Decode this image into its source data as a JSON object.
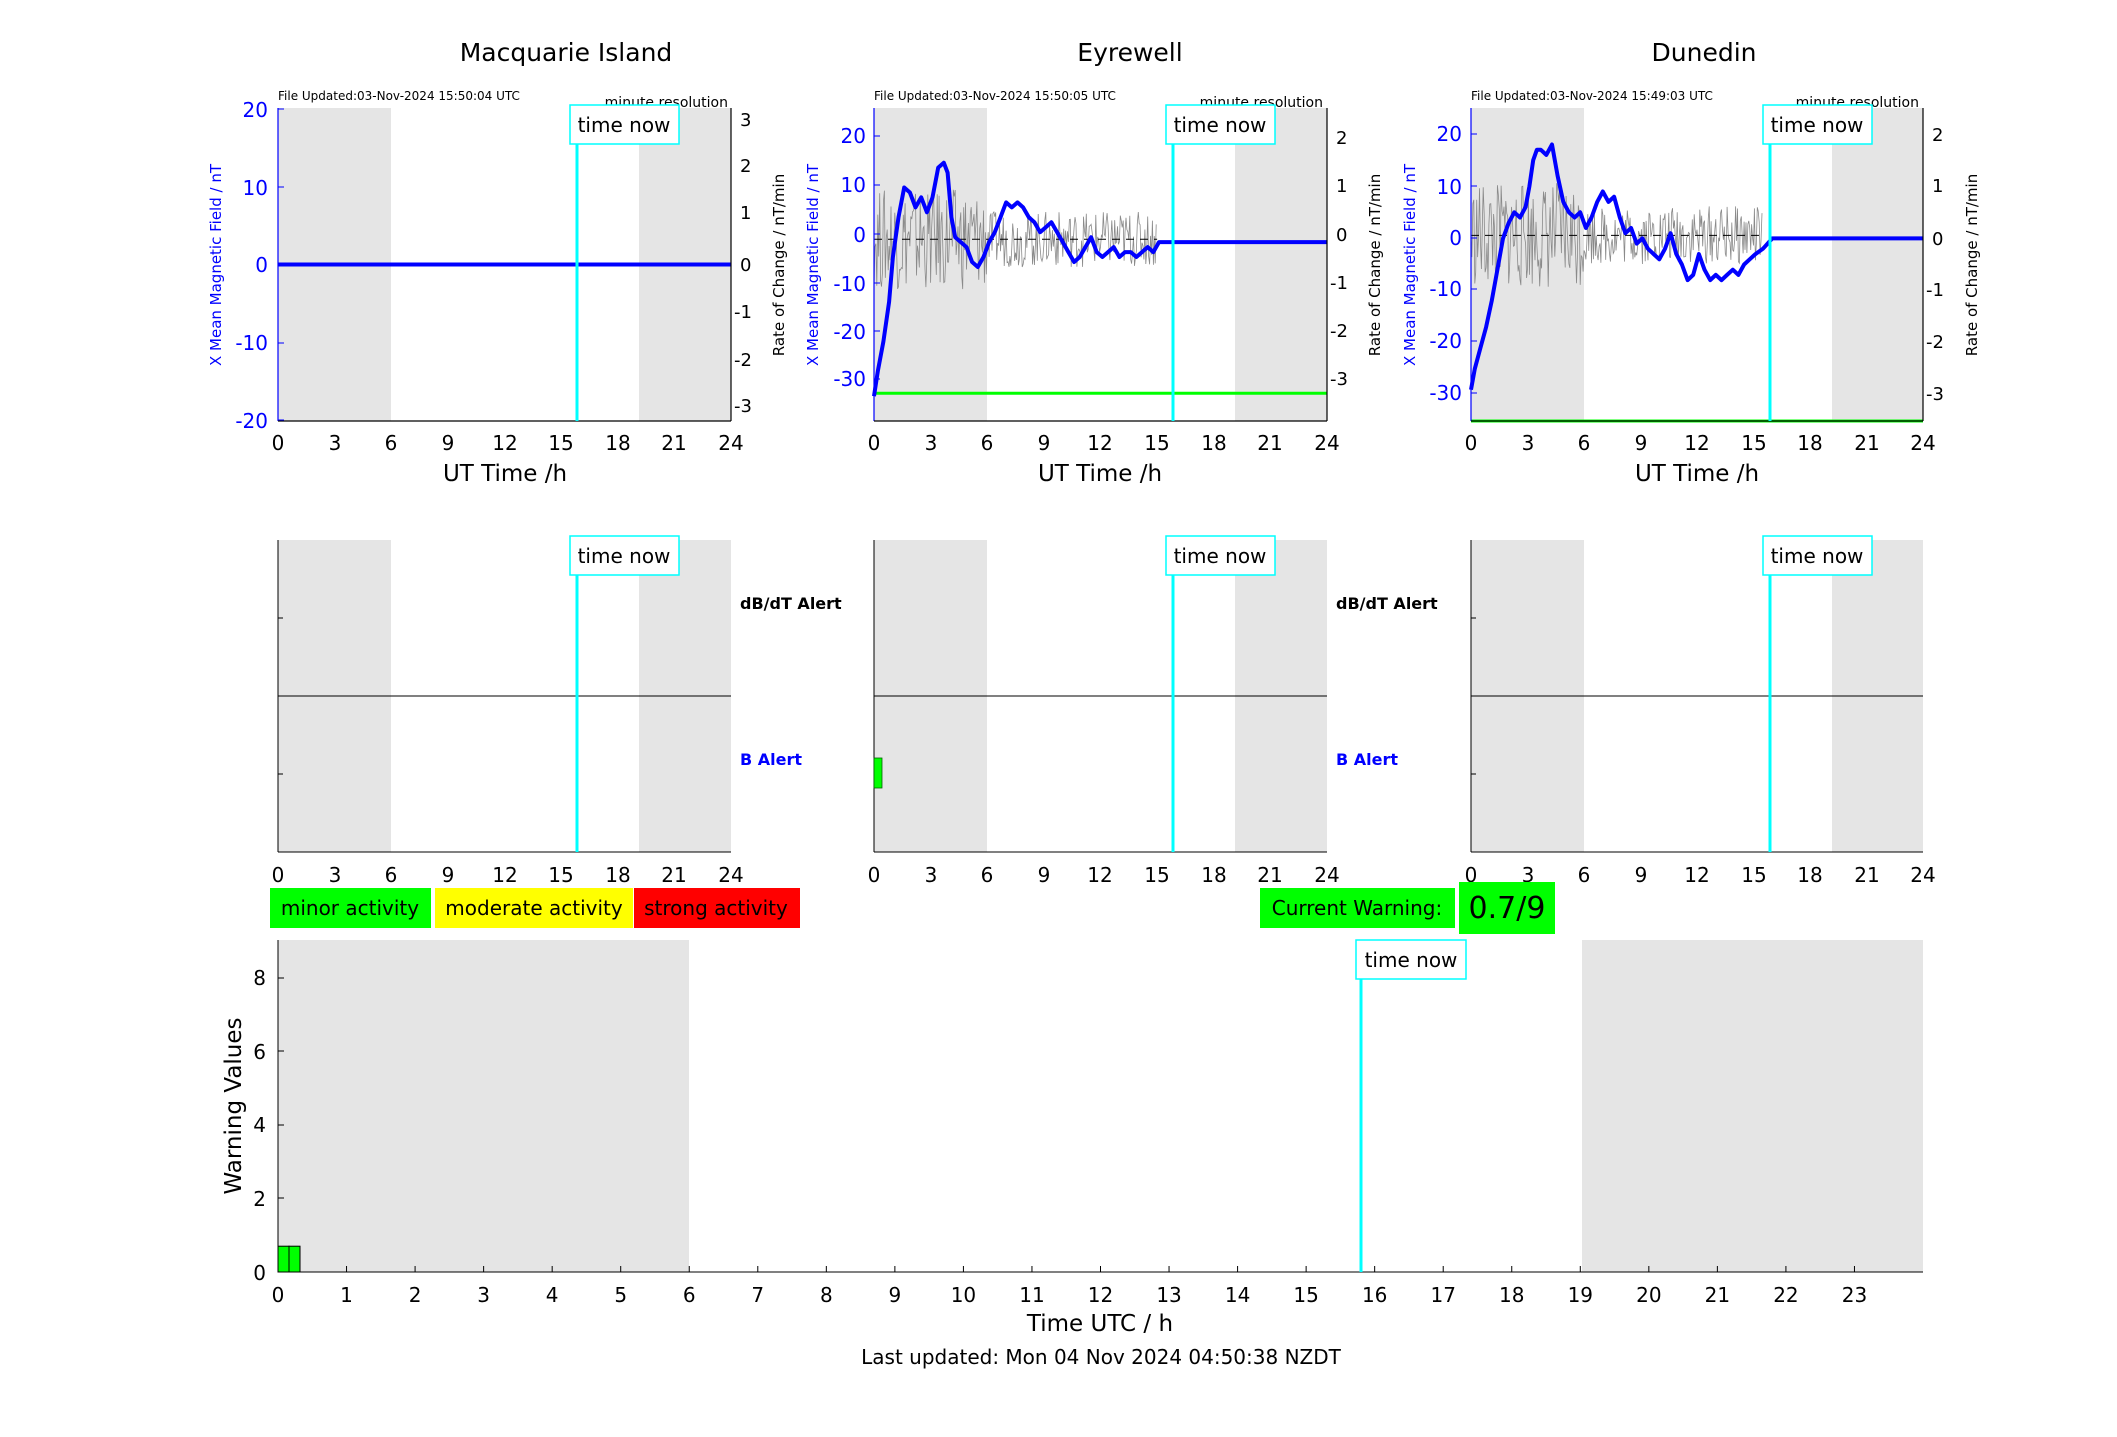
{
  "panels": [
    {
      "title": "Macquarie Island",
      "file_updated": "File Updated:03-Nov-2024 15:50:04 UTC",
      "resolution": "minute resolution",
      "ylabel_left": "X Mean Magnetic Field / nT",
      "ylabel_right": "Rate of Change / nT/min",
      "xlabel": "UT Time /h",
      "time_now_label": "time now",
      "left_ticks": [
        "20",
        "10",
        "0",
        "-10",
        "-20"
      ],
      "right_ticks": [
        "3",
        "2",
        "1",
        "0",
        "-1",
        "-2",
        "-3"
      ],
      "x_ticks": [
        "0",
        "3",
        "6",
        "9",
        "12",
        "15",
        "18",
        "21",
        "24"
      ]
    },
    {
      "title": "Eyrewell",
      "file_updated": "File Updated:03-Nov-2024 15:50:05 UTC",
      "resolution": "minute resolution",
      "ylabel_left": "X Mean Magnetic Field / nT",
      "ylabel_right": "Rate of Change / nT/min",
      "xlabel": "UT Time /h",
      "time_now_label": "time now",
      "left_ticks": [
        "20",
        "10",
        "0",
        "-10",
        "-20",
        "-30"
      ],
      "right_ticks": [
        "2",
        "1",
        "0",
        "-1",
        "-2",
        "-3"
      ],
      "x_ticks": [
        "0",
        "3",
        "6",
        "9",
        "12",
        "15",
        "18",
        "21",
        "24"
      ]
    },
    {
      "title": "Dunedin",
      "file_updated": "File Updated:03-Nov-2024 15:49:03 UTC",
      "resolution": "minute resolution",
      "ylabel_left": "X Mean Magnetic Field / nT",
      "ylabel_right": "Rate of Change / nT/min",
      "xlabel": "UT Time /h",
      "time_now_label": "time now",
      "left_ticks": [
        "20",
        "10",
        "0",
        "-10",
        "-20",
        "-30"
      ],
      "right_ticks": [
        "2",
        "1",
        "0",
        "-1",
        "-2",
        "-3"
      ],
      "x_ticks": [
        "0",
        "3",
        "6",
        "9",
        "12",
        "15",
        "18",
        "21",
        "24"
      ]
    }
  ],
  "alerts": {
    "dbdt_label": "dB/dT Alert",
    "b_label": "B Alert",
    "x_ticks": [
      "0",
      "3",
      "6",
      "9",
      "12",
      "15",
      "18",
      "21",
      "24"
    ]
  },
  "legend": {
    "minor": "minor activity",
    "moderate": "moderate activity",
    "strong": "strong activity",
    "minor_color": "#00ff00",
    "moderate_color": "#ffff00",
    "strong_color": "#ff0000"
  },
  "current_warning": {
    "label": "Current Warning:",
    "value": "0.7/9"
  },
  "warning_chart": {
    "ylabel": "Warning Values",
    "xlabel": "Time UTC / h",
    "y_ticks": [
      "8",
      "6",
      "4",
      "2",
      "0"
    ],
    "x_ticks": [
      "0",
      "1",
      "2",
      "3",
      "4",
      "5",
      "6",
      "7",
      "8",
      "9",
      "10",
      "11",
      "12",
      "13",
      "14",
      "15",
      "16",
      "17",
      "18",
      "19",
      "20",
      "21",
      "22",
      "23"
    ],
    "time_now_label": "time now"
  },
  "footer": "Last updated: Mon 04 Nov 2024 04:50:38 NZDT",
  "chart_data": [
    {
      "type": "line",
      "title": "Macquarie Island",
      "xlabel": "UT Time /h",
      "ylabel": "X Mean Magnetic Field / nT",
      "ylabel_right": "Rate of Change / nT/min",
      "xlim": [
        0,
        24
      ],
      "ylim": [
        -20,
        20
      ],
      "ylim_right": [
        -3.4,
        3.4
      ],
      "time_now": 15.8,
      "night_shading": [
        [
          0,
          6
        ],
        [
          19,
          24
        ]
      ],
      "series": [
        {
          "name": "X Mean Magnetic Field",
          "color": "#0000ff",
          "x": [
            0,
            24
          ],
          "y": [
            0,
            0
          ]
        }
      ]
    },
    {
      "type": "line",
      "title": "Eyrewell",
      "xlabel": "UT Time /h",
      "ylabel": "X Mean Magnetic Field / nT",
      "ylabel_right": "Rate of Change / nT/min",
      "xlim": [
        0,
        24
      ],
      "ylim": [
        -36,
        27
      ],
      "ylim_right": [
        -3.6,
        2.6
      ],
      "time_now": 15.8,
      "threshold_right": -3.05,
      "night_shading": [
        [
          0,
          6
        ],
        [
          19,
          24
        ]
      ],
      "series": [
        {
          "name": "X Mean Magnetic Field",
          "color": "#0000ff",
          "x": [
            0,
            0.2,
            0.5,
            0.8,
            1.0,
            1.3,
            1.6,
            1.9,
            2.2,
            2.5,
            2.8,
            3.1,
            3.4,
            3.7,
            3.9,
            4.1,
            4.3,
            4.6,
            4.9,
            5.2,
            5.5,
            5.8,
            6.1,
            6.4,
            6.7,
            7.0,
            7.3,
            7.6,
            7.9,
            8.2,
            8.5,
            8.8,
            9.1,
            9.4,
            9.7,
            10.0,
            10.3,
            10.6,
            10.9,
            11.2,
            11.5,
            11.8,
            12.1,
            12.4,
            12.7,
            13.0,
            13.3,
            13.6,
            13.9,
            14.2,
            14.5,
            14.8,
            15.1,
            16,
            20,
            24
          ],
          "y": [
            -31,
            -26,
            -20,
            -12,
            -3,
            5,
            11,
            10,
            7,
            9,
            6,
            9,
            15,
            16,
            14,
            5,
            1,
            0,
            -1,
            -4,
            -5,
            -3,
            0,
            2,
            5,
            8,
            7,
            8,
            7,
            5,
            4,
            2,
            3,
            4,
            2,
            0,
            -2,
            -4,
            -3,
            -1,
            1,
            -2,
            -3,
            -2,
            -1,
            -3,
            -2,
            -2,
            -3,
            -2,
            -1,
            -2,
            0,
            0,
            0,
            0
          ]
        },
        {
          "name": "Rate of Change",
          "color": "#888888",
          "x": [
            0,
            15
          ],
          "y": [
            0,
            0
          ]
        }
      ]
    },
    {
      "type": "line",
      "title": "Dunedin",
      "xlabel": "UT Time /h",
      "ylabel": "X Mean Magnetic Field / nT",
      "ylabel_right": "Rate of Change / nT/min",
      "xlim": [
        0,
        24
      ],
      "ylim": [
        -35,
        25
      ],
      "ylim_right": [
        -3.5,
        2.4
      ],
      "time_now": 15.8,
      "threshold_right": -3.5,
      "night_shading": [
        [
          0,
          6
        ],
        [
          19,
          24
        ]
      ],
      "series": [
        {
          "name": "X Mean Magnetic Field",
          "color": "#0000ff",
          "x": [
            0,
            0.2,
            0.5,
            0.8,
            1.1,
            1.4,
            1.7,
            2.0,
            2.3,
            2.6,
            2.9,
            3.1,
            3.3,
            3.5,
            3.7,
            4.0,
            4.3,
            4.6,
            4.9,
            5.2,
            5.5,
            5.8,
            6.1,
            6.4,
            6.7,
            7.0,
            7.3,
            7.6,
            7.9,
            8.2,
            8.5,
            8.8,
            9.1,
            9.4,
            9.7,
            10.0,
            10.3,
            10.6,
            10.9,
            11.2,
            11.5,
            11.8,
            12.1,
            12.4,
            12.7,
            13.0,
            13.3,
            13.6,
            13.9,
            14.2,
            14.5,
            14.8,
            15.1,
            15.5,
            16,
            20,
            24
          ],
          "y": [
            -29,
            -25,
            -21,
            -17,
            -12,
            -6,
            0,
            3,
            5,
            4,
            6,
            10,
            15,
            17,
            17,
            16,
            18,
            12,
            7,
            5,
            4,
            5,
            2,
            4,
            7,
            9,
            7,
            8,
            4,
            1,
            2,
            -1,
            0,
            -2,
            -3,
            -4,
            -2,
            1,
            -3,
            -5,
            -8,
            -7,
            -3,
            -6,
            -8,
            -7,
            -8,
            -7,
            -6,
            -7,
            -5,
            -4,
            -3,
            -2,
            0,
            0,
            0
          ]
        },
        {
          "name": "Rate of Change",
          "color": "#888888",
          "x": [
            0,
            15.5
          ],
          "y": [
            0,
            0
          ]
        }
      ]
    },
    {
      "type": "bar",
      "title": "",
      "xlabel": "Time UTC / h",
      "ylabel": "Warning Values",
      "xlim": [
        0,
        24
      ],
      "ylim": [
        0,
        9
      ],
      "time_now": 15.8,
      "night_shading": [
        [
          0,
          6
        ],
        [
          19,
          24
        ]
      ],
      "x": [
        0.08,
        0.24
      ],
      "values": [
        0.7,
        0.7
      ]
    }
  ]
}
